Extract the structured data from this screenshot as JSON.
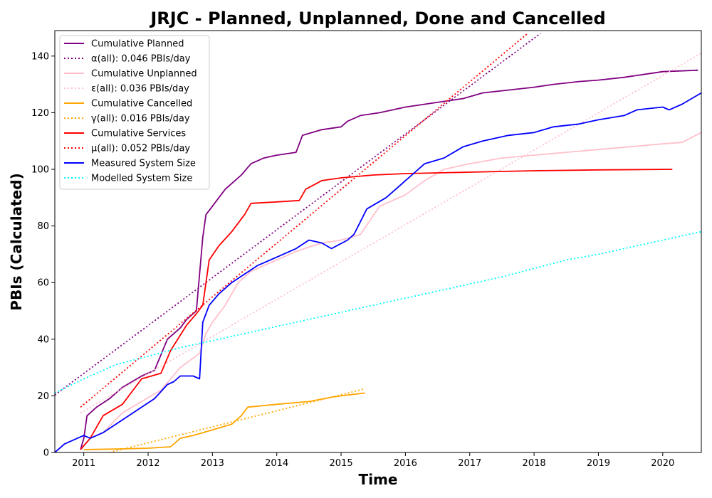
{
  "chart_data": {
    "type": "line",
    "title": "JRJC - Planned, Unplanned, Done  and Cancelled",
    "xlabel": "Time",
    "ylabel": "PBIs (Calculated)",
    "xlim": [
      2010.55,
      2020.6
    ],
    "ylim": [
      0,
      149
    ],
    "x_ticks": [
      2011,
      2012,
      2013,
      2014,
      2015,
      2016,
      2017,
      2018,
      2019,
      2020
    ],
    "x_tick_labels": [
      "2011",
      "2012",
      "2013",
      "2014",
      "2015",
      "2016",
      "2017",
      "2018",
      "2019",
      "2020"
    ],
    "y_ticks": [
      0,
      20,
      40,
      60,
      80,
      100,
      120,
      140
    ],
    "y_tick_labels": [
      "0",
      "20",
      "40",
      "60",
      "80",
      "100",
      "120",
      "140"
    ],
    "grid": false,
    "legend_position": "top-left",
    "series": [
      {
        "name": "Cumulative Planned",
        "color": "#800080",
        "style": "solid",
        "x": [
          2010.95,
          2011.0,
          2011.05,
          2011.2,
          2011.4,
          2011.6,
          2011.9,
          2012.1,
          2012.3,
          2012.5,
          2012.6,
          2012.75,
          2012.85,
          2012.9,
          2013.0,
          2013.2,
          2013.45,
          2013.6,
          2013.8,
          2014.0,
          2014.3,
          2014.4,
          2014.7,
          2015.0,
          2015.1,
          2015.3,
          2015.6,
          2016.0,
          2016.3,
          2016.6,
          2016.9,
          2017.2,
          2017.6,
          2018.0,
          2018.3,
          2018.7,
          2019.0,
          2019.4,
          2019.7,
          2020.0,
          2020.55
        ],
        "y": [
          1,
          5,
          13,
          16,
          19,
          23,
          27,
          29,
          40,
          44,
          47,
          50,
          76,
          84,
          87,
          93,
          98,
          102,
          104,
          105,
          106,
          112,
          114,
          115,
          117,
          119,
          120,
          122,
          123,
          124,
          125,
          127,
          128,
          129,
          130,
          131,
          131.5,
          132.5,
          133.5,
          134.5,
          135
        ]
      },
      {
        "name": "α(all): 0.046 PBIs/day",
        "color": "#800080",
        "style": "dotted",
        "x": [
          2010.55,
          2018.1
        ],
        "y": [
          20.3,
          148
        ]
      },
      {
        "name": "Cumulative Unplanned",
        "color": "#ffc0cb",
        "style": "solid",
        "x": [
          2010.95,
          2011.1,
          2011.3,
          2011.6,
          2011.9,
          2012.2,
          2012.5,
          2012.8,
          2012.9,
          2013.0,
          2013.2,
          2013.4,
          2013.6,
          2013.8,
          2014.0,
          2014.3,
          2014.7,
          2015.0,
          2015.3,
          2015.6,
          2016.0,
          2016.3,
          2016.6,
          2017.0,
          2017.5,
          2018.0,
          2018.5,
          2019.0,
          2019.5,
          2020.0,
          2020.3,
          2020.6
        ],
        "y": [
          1,
          5,
          7,
          14,
          18,
          22,
          30,
          35,
          42,
          46,
          52,
          60,
          64,
          66,
          68,
          71,
          74,
          75,
          77,
          87,
          91,
          96,
          100,
          102,
          104,
          105,
          106,
          107,
          108,
          109,
          109.5,
          113
        ]
      },
      {
        "name": "ε(all): 0.036 PBIs/day",
        "color": "#ffc0cb",
        "style": "dotted",
        "x": [
          2010.95,
          2020.6
        ],
        "y": [
          14,
          141
        ]
      },
      {
        "name": "Cumulative Cancelled",
        "color": "#ffa500",
        "style": "solid",
        "x": [
          2011.0,
          2011.5,
          2012.0,
          2012.35,
          2012.5,
          2012.7,
          2013.0,
          2013.3,
          2013.45,
          2013.55,
          2014.0,
          2014.5,
          2014.85,
          2015.0,
          2015.37
        ],
        "y": [
          1,
          1.2,
          1.5,
          2,
          5,
          6,
          8,
          10,
          13,
          16,
          17,
          18,
          19.5,
          20,
          21
        ]
      },
      {
        "name": "γ(all): 0.016 PBIs/day",
        "color": "#ffa500",
        "style": "dotted",
        "x": [
          2011.4,
          2015.37
        ],
        "y": [
          0,
          22.5
        ]
      },
      {
        "name": "Cumulative Services",
        "color": "#ff0000",
        "style": "solid",
        "x": [
          2010.95,
          2011.1,
          2011.3,
          2011.6,
          2011.9,
          2012.2,
          2012.35,
          2012.6,
          2012.75,
          2012.85,
          2012.95,
          2013.1,
          2013.3,
          2013.5,
          2013.6,
          2014.0,
          2014.35,
          2014.45,
          2014.7,
          2015.0,
          2015.5,
          2016.0,
          2017.0,
          2018.0,
          2019.0,
          2020.15
        ],
        "y": [
          1,
          5,
          13,
          17,
          26,
          28,
          36,
          45,
          49,
          52,
          68,
          73,
          78,
          84,
          88,
          88.5,
          89,
          93,
          96,
          97,
          98,
          98.5,
          99,
          99.5,
          99.8,
          100
        ]
      },
      {
        "name": "μ(all): 0.052 PBIs/day",
        "color": "#ff0000",
        "style": "dotted",
        "x": [
          2010.95,
          2017.9
        ],
        "y": [
          16,
          148
        ]
      },
      {
        "name": "Measured System Size",
        "color": "#0000ff",
        "style": "solid",
        "x": [
          2010.55,
          2010.7,
          2010.9,
          2011.0,
          2011.1,
          2011.3,
          2011.5,
          2011.7,
          2011.9,
          2012.1,
          2012.3,
          2012.4,
          2012.5,
          2012.7,
          2012.8,
          2012.85,
          2012.95,
          2013.1,
          2013.3,
          2013.5,
          2013.7,
          2014.0,
          2014.3,
          2014.5,
          2014.7,
          2014.85,
          2015.1,
          2015.2,
          2015.4,
          2015.7,
          2015.9,
          2016.1,
          2016.3,
          2016.6,
          2016.9,
          2017.2,
          2017.6,
          2018.0,
          2018.3,
          2018.7,
          2019.0,
          2019.4,
          2019.6,
          2020.0,
          2020.1,
          2020.3,
          2020.6
        ],
        "y": [
          0,
          3,
          5,
          6,
          5,
          7,
          10,
          13,
          16,
          19,
          24,
          25,
          27,
          27,
          26,
          46,
          52,
          56,
          60,
          63,
          66,
          69,
          72,
          75,
          74,
          72,
          75,
          77,
          86,
          90,
          94,
          98,
          102,
          104,
          108,
          110,
          112,
          113,
          115,
          116,
          117.5,
          119,
          121,
          122,
          121,
          123,
          127
        ]
      },
      {
        "name": "Modelled System Size",
        "color": "#00ffff",
        "style": "dotted",
        "x": [
          2010.55,
          2011.0,
          2011.5,
          2012.0,
          2012.5,
          2013.0,
          2013.5,
          2014.0,
          2014.5,
          2015.0,
          2015.5,
          2016.0,
          2016.5,
          2017.0,
          2017.5,
          2018.0,
          2018.5,
          2019.0,
          2019.5,
          2020.0,
          2020.6
        ],
        "y": [
          21,
          26,
          31,
          34,
          37,
          39.5,
          42,
          44.5,
          47,
          49.5,
          52,
          54.5,
          57,
          59.5,
          62,
          65,
          68,
          70,
          72.5,
          75,
          78
        ]
      }
    ]
  }
}
